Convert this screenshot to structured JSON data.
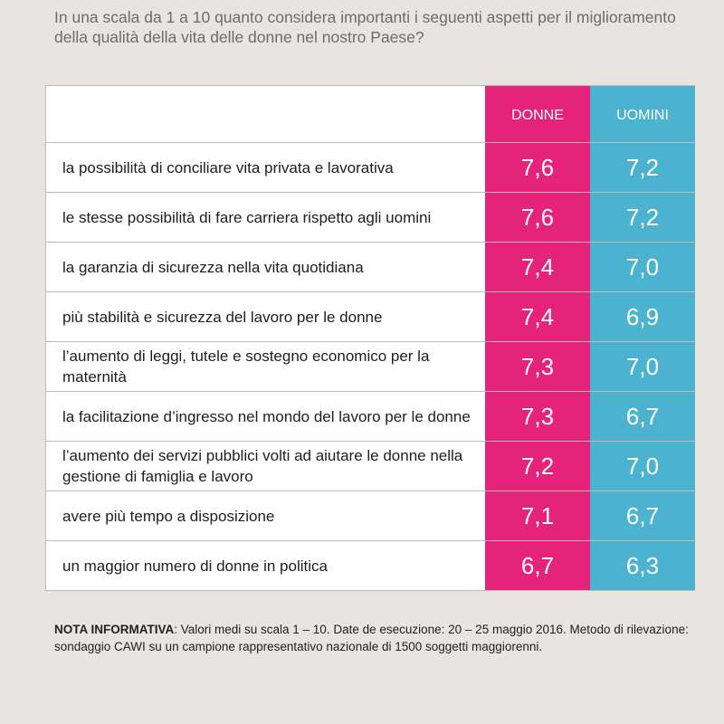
{
  "question": "In una scala da 1 a 10 quanto considera importanti i seguenti aspetti per il miglioramento della qualità della vita delle donne nel nostro Paese?",
  "colors": {
    "donne": "#e6237a",
    "uomini": "#4bb3cf",
    "background": "#e8e4e1"
  },
  "chart_data": {
    "type": "table",
    "columns": [
      "DONNE",
      "UOMINI"
    ],
    "rows": [
      {
        "label": "la possibilità di conciliare vita privata e lavorativa",
        "donne": "7,6",
        "uomini": "7,2"
      },
      {
        "label": "le stesse possibilità di fare carriera rispetto agli uomini",
        "donne": "7,6",
        "uomini": "7,2"
      },
      {
        "label": "la garanzia di sicurezza nella vita quotidiana",
        "donne": "7,4",
        "uomini": "7,0"
      },
      {
        "label": "più stabilità e sicurezza del lavoro per le donne",
        "donne": "7,4",
        "uomini": "6,9"
      },
      {
        "label": "l’aumento di leggi, tutele e sostegno economico per la maternità",
        "donne": "7,3",
        "uomini": "7,0"
      },
      {
        "label": "la facilitazione d’ingresso nel mondo del lavoro per le donne",
        "donne": "7,3",
        "uomini": "6,7"
      },
      {
        "label": "l’aumento dei servizi pubblici volti ad aiutare le donne nella gestione di famiglia e lavoro",
        "donne": "7,2",
        "uomini": "7,0"
      },
      {
        "label": "avere più tempo a disposizione",
        "donne": "7,1",
        "uomini": "6,7"
      },
      {
        "label": "un maggior numero di donne in politica",
        "donne": "6,7",
        "uomini": "6,3"
      }
    ]
  },
  "note": {
    "label": "NOTA INFORMATIVA",
    "text": ": Valori medi su scala 1 – 10. Date de esecuzione: 20 – 25 maggio 2016. Metodo di rilevazione: sondaggio CAWI su un campione rappresentativo nazionale di 1500 soggetti maggiorenni."
  }
}
